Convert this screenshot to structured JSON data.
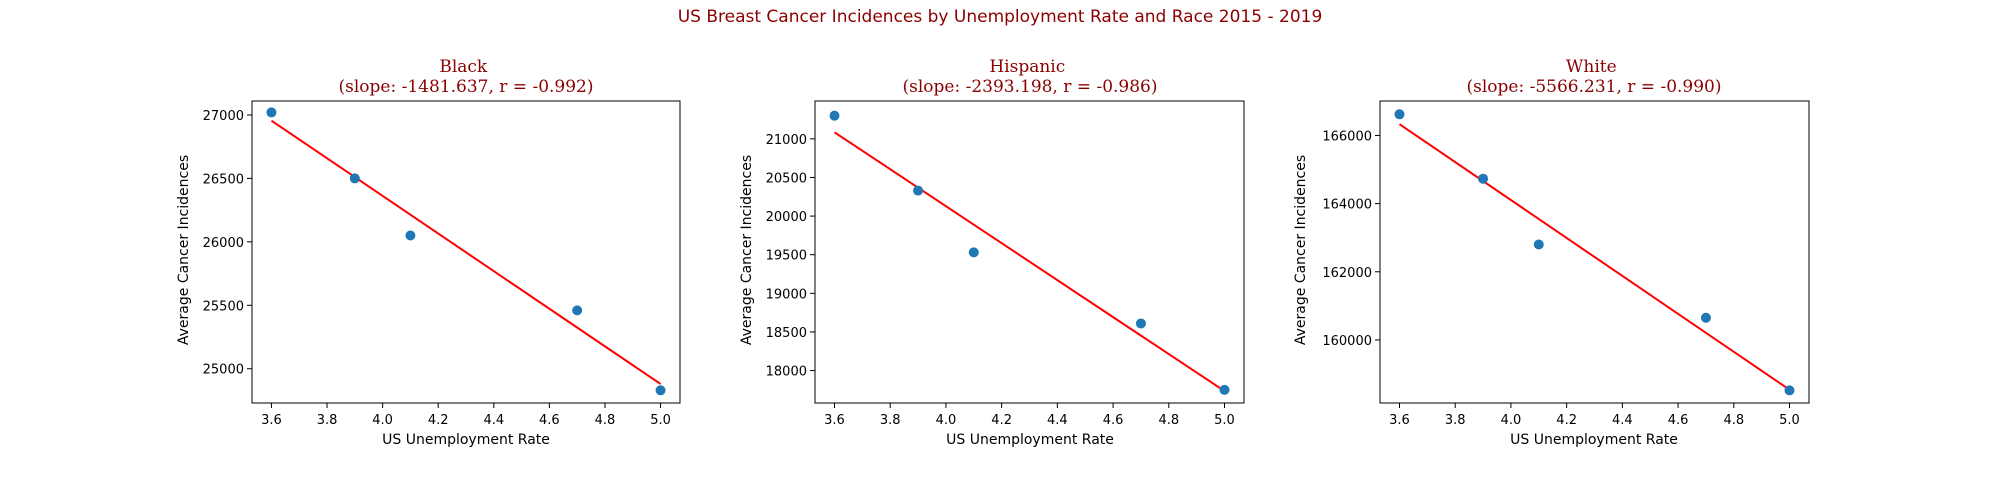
{
  "figure": {
    "title": "US Breast Cancer Incidences by Unemployment Rate and Race 2015 - 2019"
  },
  "colors": {
    "title": "#8b0000",
    "points": "#1f77b4",
    "fit_line": "#ff0000"
  },
  "chart_data": [
    {
      "type": "scatter",
      "title_line1": "Black",
      "title_line2": "(slope: -1481.637, r = -0.992)",
      "xlabel": "US Unemployment Rate",
      "ylabel": "Average Cancer Incidences",
      "xlim": [
        3.53,
        5.07
      ],
      "ylim": [
        24730,
        27110
      ],
      "xticks": [
        3.6,
        3.8,
        4.0,
        4.2,
        4.4,
        4.6,
        4.8,
        5.0
      ],
      "xtick_labels": [
        "3.6",
        "3.8",
        "4.0",
        "4.2",
        "4.4",
        "4.6",
        "4.8",
        "5.0"
      ],
      "yticks": [
        25000,
        25500,
        26000,
        26500,
        27000
      ],
      "ytick_labels": [
        "25000",
        "25500",
        "26000",
        "26500",
        "27000"
      ],
      "x": [
        3.6,
        3.9,
        4.1,
        4.7,
        5.0
      ],
      "y": [
        27020,
        26500,
        26050,
        25460,
        24830
      ],
      "fit": {
        "x": [
          3.6,
          5.0
        ],
        "y": [
          26955,
          24880
        ]
      }
    },
    {
      "type": "scatter",
      "title_line1": "Hispanic",
      "title_line2": "(slope: -2393.198, r = -0.986)",
      "xlabel": "US Unemployment Rate",
      "ylabel": "Average Cancer Incidences",
      "xlim": [
        3.53,
        5.07
      ],
      "ylim": [
        17580,
        21490
      ],
      "xticks": [
        3.6,
        3.8,
        4.0,
        4.2,
        4.4,
        4.6,
        4.8,
        5.0
      ],
      "xtick_labels": [
        "3.6",
        "3.8",
        "4.0",
        "4.2",
        "4.4",
        "4.6",
        "4.8",
        "5.0"
      ],
      "yticks": [
        18000,
        18500,
        19000,
        19500,
        20000,
        20500,
        21000
      ],
      "ytick_labels": [
        "18000",
        "18500",
        "19000",
        "19500",
        "20000",
        "20500",
        "21000"
      ],
      "x": [
        3.6,
        3.9,
        4.1,
        4.7,
        5.0
      ],
      "y": [
        21300,
        20330,
        19530,
        18610,
        17750
      ],
      "fit": {
        "x": [
          3.6,
          5.0
        ],
        "y": [
          21085,
          17735
        ]
      }
    },
    {
      "type": "scatter",
      "title_line1": "White",
      "title_line2": "(slope: -5566.231, r = -0.990)",
      "xlabel": "US Unemployment Rate",
      "ylabel": "Average Cancer Incidences",
      "xlim": [
        3.53,
        5.07
      ],
      "ylim": [
        158150,
        167010
      ],
      "xticks": [
        3.6,
        3.8,
        4.0,
        4.2,
        4.4,
        4.6,
        4.8,
        5.0
      ],
      "xtick_labels": [
        "3.6",
        "3.8",
        "4.0",
        "4.2",
        "4.4",
        "4.6",
        "4.8",
        "5.0"
      ],
      "yticks": [
        160000,
        162000,
        164000,
        166000
      ],
      "ytick_labels": [
        "160000",
        "162000",
        "164000",
        "166000"
      ],
      "x": [
        3.6,
        3.9,
        4.1,
        4.7,
        5.0
      ],
      "y": [
        166620,
        164730,
        162800,
        160650,
        158520
      ],
      "fit": {
        "x": [
          3.6,
          5.0
        ],
        "y": [
          166330,
          158540
        ]
      }
    }
  ]
}
